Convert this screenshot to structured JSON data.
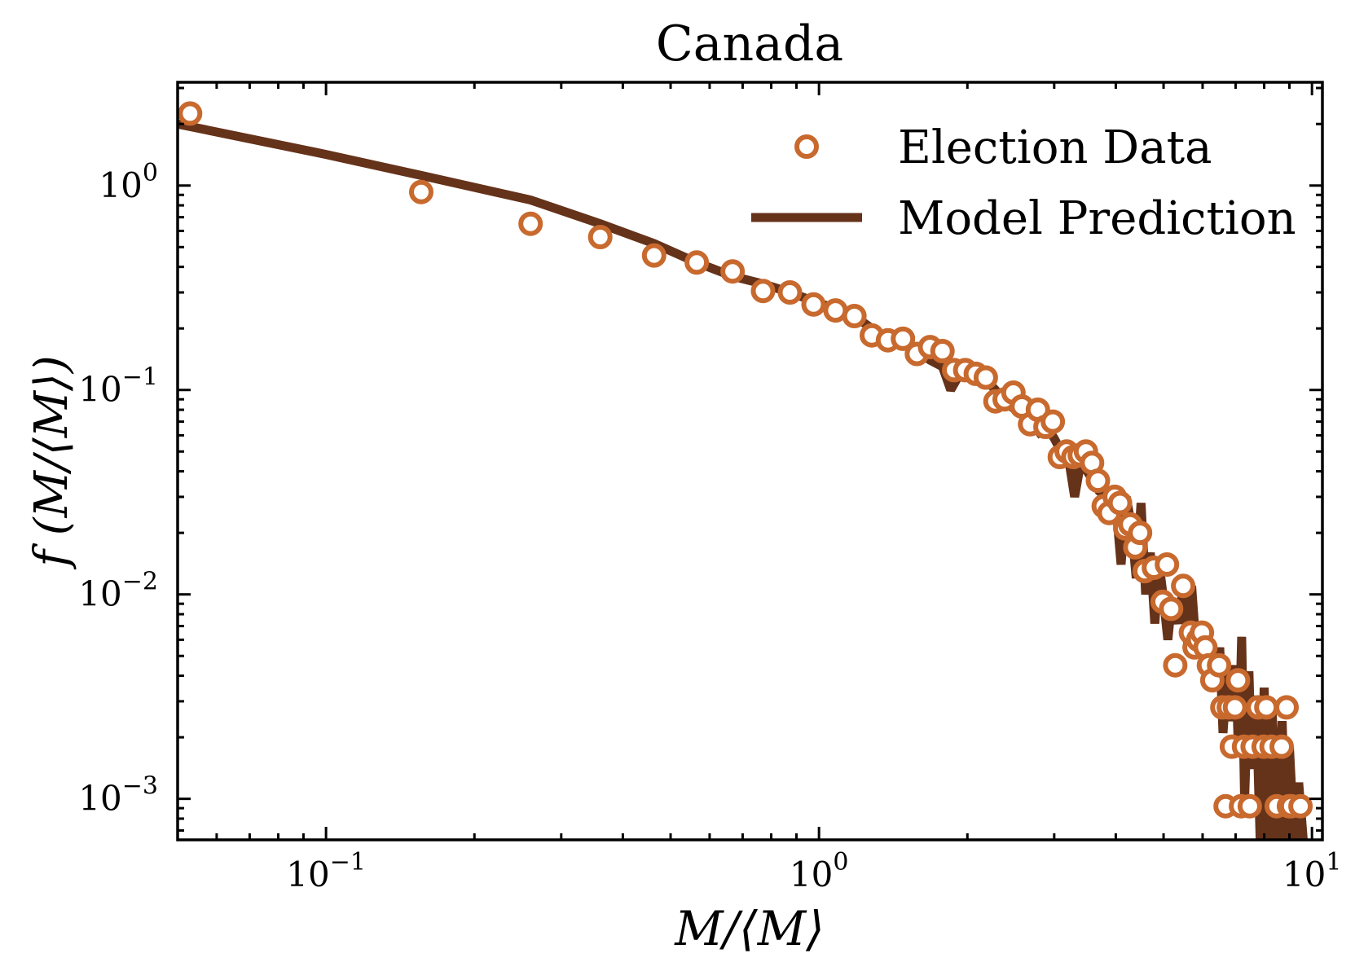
{
  "chart_data": {
    "type": "scatter",
    "title": "Canada",
    "xlabel": "M/⟨M⟩",
    "ylabel": "f (M/⟨M⟩)",
    "x_scale": "log",
    "y_scale": "log",
    "xlim": [
      0.05,
      10.5
    ],
    "ylim": [
      0.00063,
      3.2
    ],
    "x_ticks": [
      {
        "value": 0.1,
        "base": "10",
        "exp": "−1"
      },
      {
        "value": 1,
        "base": "10",
        "exp": "0"
      },
      {
        "value": 10,
        "base": "10",
        "exp": "1"
      }
    ],
    "y_ticks": [
      {
        "value": 1,
        "base": "10",
        "exp": "0"
      },
      {
        "value": 0.1,
        "base": "10",
        "exp": "−1"
      },
      {
        "value": 0.01,
        "base": "10",
        "exp": "−2"
      },
      {
        "value": 0.001,
        "base": "10",
        "exp": "−3"
      }
    ],
    "grid": false,
    "legend_position": "top-right",
    "colors": {
      "election": "#c8692e",
      "model": "#65321a",
      "axes": "#000000"
    },
    "series": [
      {
        "name": "Election Data",
        "kind": "scatter",
        "points": [
          [
            0.053,
            2.25
          ],
          [
            0.156,
            0.93
          ],
          [
            0.26,
            0.65
          ],
          [
            0.36,
            0.56
          ],
          [
            0.463,
            0.455
          ],
          [
            0.565,
            0.42
          ],
          [
            0.668,
            0.38
          ],
          [
            0.77,
            0.305
          ],
          [
            0.873,
            0.3
          ],
          [
            0.975,
            0.262
          ],
          [
            1.08,
            0.245
          ],
          [
            1.18,
            0.23
          ],
          [
            1.28,
            0.185
          ],
          [
            1.38,
            0.175
          ],
          [
            1.48,
            0.178
          ],
          [
            1.58,
            0.15
          ],
          [
            1.68,
            0.162
          ],
          [
            1.78,
            0.155
          ],
          [
            1.88,
            0.125
          ],
          [
            1.98,
            0.125
          ],
          [
            2.08,
            0.12
          ],
          [
            2.18,
            0.115
          ],
          [
            2.28,
            0.088
          ],
          [
            2.38,
            0.09
          ],
          [
            2.48,
            0.097
          ],
          [
            2.58,
            0.083
          ],
          [
            2.68,
            0.068
          ],
          [
            2.78,
            0.08
          ],
          [
            2.88,
            0.066
          ],
          [
            2.98,
            0.07
          ],
          [
            3.08,
            0.047
          ],
          [
            3.18,
            0.05
          ],
          [
            3.28,
            0.047
          ],
          [
            3.38,
            0.048
          ],
          [
            3.48,
            0.05
          ],
          [
            3.58,
            0.044
          ],
          [
            3.68,
            0.036
          ],
          [
            3.78,
            0.027
          ],
          [
            3.88,
            0.025
          ],
          [
            3.98,
            0.03
          ],
          [
            4.08,
            0.028
          ],
          [
            4.18,
            0.021
          ],
          [
            4.28,
            0.022
          ],
          [
            4.38,
            0.017
          ],
          [
            4.48,
            0.02
          ],
          [
            4.58,
            0.013
          ],
          [
            4.78,
            0.0135
          ],
          [
            4.98,
            0.0092
          ],
          [
            5.08,
            0.014
          ],
          [
            5.18,
            0.0085
          ],
          [
            5.28,
            0.0045
          ],
          [
            5.48,
            0.011
          ],
          [
            5.68,
            0.0065
          ],
          [
            5.78,
            0.0055
          ],
          [
            5.88,
            0.006
          ],
          [
            5.98,
            0.0065
          ],
          [
            6.08,
            0.0055
          ],
          [
            6.18,
            0.0045
          ],
          [
            6.28,
            0.0038
          ],
          [
            6.48,
            0.0045
          ],
          [
            6.58,
            0.0028
          ],
          [
            6.68,
            0.00092
          ],
          [
            6.78,
            0.0028
          ],
          [
            6.88,
            0.0018
          ],
          [
            6.98,
            0.0028
          ],
          [
            7.08,
            0.0038
          ],
          [
            7.18,
            0.00092
          ],
          [
            7.28,
            0.0018
          ],
          [
            7.48,
            0.00092
          ],
          [
            7.58,
            0.0018
          ],
          [
            7.78,
            0.0028
          ],
          [
            7.98,
            0.0018
          ],
          [
            8.08,
            0.0028
          ],
          [
            8.28,
            0.0018
          ],
          [
            8.48,
            0.00092
          ],
          [
            8.68,
            0.0018
          ],
          [
            8.88,
            0.0028
          ],
          [
            8.98,
            0.00092
          ],
          [
            9.08,
            0.00092
          ],
          [
            9.48,
            0.00092
          ]
        ]
      },
      {
        "name": "Model Prediction",
        "kind": "line",
        "points": [
          [
            0.05,
            2.0
          ],
          [
            0.1,
            1.42
          ],
          [
            0.156,
            1.12
          ],
          [
            0.26,
            0.85
          ],
          [
            0.36,
            0.65
          ],
          [
            0.463,
            0.52
          ],
          [
            0.565,
            0.42
          ],
          [
            0.668,
            0.36
          ],
          [
            0.77,
            0.33
          ],
          [
            0.873,
            0.3
          ],
          [
            0.975,
            0.272
          ],
          [
            1.08,
            0.25
          ],
          [
            1.18,
            0.23
          ],
          [
            1.28,
            0.2
          ],
          [
            1.38,
            0.18
          ],
          [
            1.48,
            0.17
          ],
          [
            1.58,
            0.155
          ],
          [
            1.68,
            0.14
          ],
          [
            1.78,
            0.13
          ],
          [
            1.85,
            0.1
          ],
          [
            1.95,
            0.125
          ],
          [
            2.08,
            0.12
          ],
          [
            2.18,
            0.112
          ],
          [
            2.28,
            0.1
          ],
          [
            2.38,
            0.088
          ],
          [
            2.5,
            0.08
          ],
          [
            2.6,
            0.075
          ],
          [
            2.7,
            0.07
          ],
          [
            2.8,
            0.062
          ],
          [
            2.9,
            0.066
          ],
          [
            3.0,
            0.058
          ],
          [
            3.1,
            0.05
          ],
          [
            3.2,
            0.048
          ],
          [
            3.3,
            0.03
          ],
          [
            3.4,
            0.045
          ],
          [
            3.5,
            0.04
          ],
          [
            3.6,
            0.036
          ],
          [
            3.7,
            0.032
          ],
          [
            3.85,
            0.03
          ],
          [
            4.0,
            0.028
          ],
          [
            4.1,
            0.014
          ],
          [
            4.2,
            0.03
          ],
          [
            4.3,
            0.022
          ],
          [
            4.4,
            0.012
          ],
          [
            4.5,
            0.028
          ],
          [
            4.6,
            0.01
          ],
          [
            4.7,
            0.016
          ],
          [
            4.8,
            0.0072
          ],
          [
            4.9,
            0.014
          ],
          [
            5.0,
            0.0095
          ],
          [
            5.1,
            0.006
          ],
          [
            5.2,
            0.0095
          ],
          [
            5.35,
            0.0072
          ],
          [
            5.5,
            0.0115
          ],
          [
            5.6,
            0.0055
          ],
          [
            5.7,
            0.011
          ],
          [
            5.8,
            0.0062
          ],
          [
            5.95,
            0.0072
          ],
          [
            6.1,
            0.0045
          ],
          [
            6.25,
            0.0055
          ],
          [
            6.4,
            0.0035
          ],
          [
            6.5,
            0.0055
          ],
          [
            6.6,
            0.0021
          ],
          [
            6.75,
            0.0045
          ],
          [
            6.85,
            0.0024
          ],
          [
            7.0,
            0.0045
          ],
          [
            7.1,
            0.0016
          ],
          [
            7.2,
            0.0062
          ],
          [
            7.3,
            0.001
          ],
          [
            7.45,
            0.0042
          ],
          [
            7.55,
            0.0014
          ],
          [
            7.7,
            0.0032
          ],
          [
            7.85,
            0.00063
          ],
          [
            8.0,
            0.0035
          ],
          [
            8.15,
            0.00063
          ],
          [
            8.3,
            0.0028
          ],
          [
            8.5,
            0.00063
          ],
          [
            8.7,
            0.0024
          ],
          [
            8.85,
            0.00063
          ],
          [
            9.0,
            0.0018
          ],
          [
            9.2,
            0.00063
          ],
          [
            9.4,
            0.0012
          ],
          [
            9.6,
            0.00063
          ]
        ]
      }
    ]
  }
}
